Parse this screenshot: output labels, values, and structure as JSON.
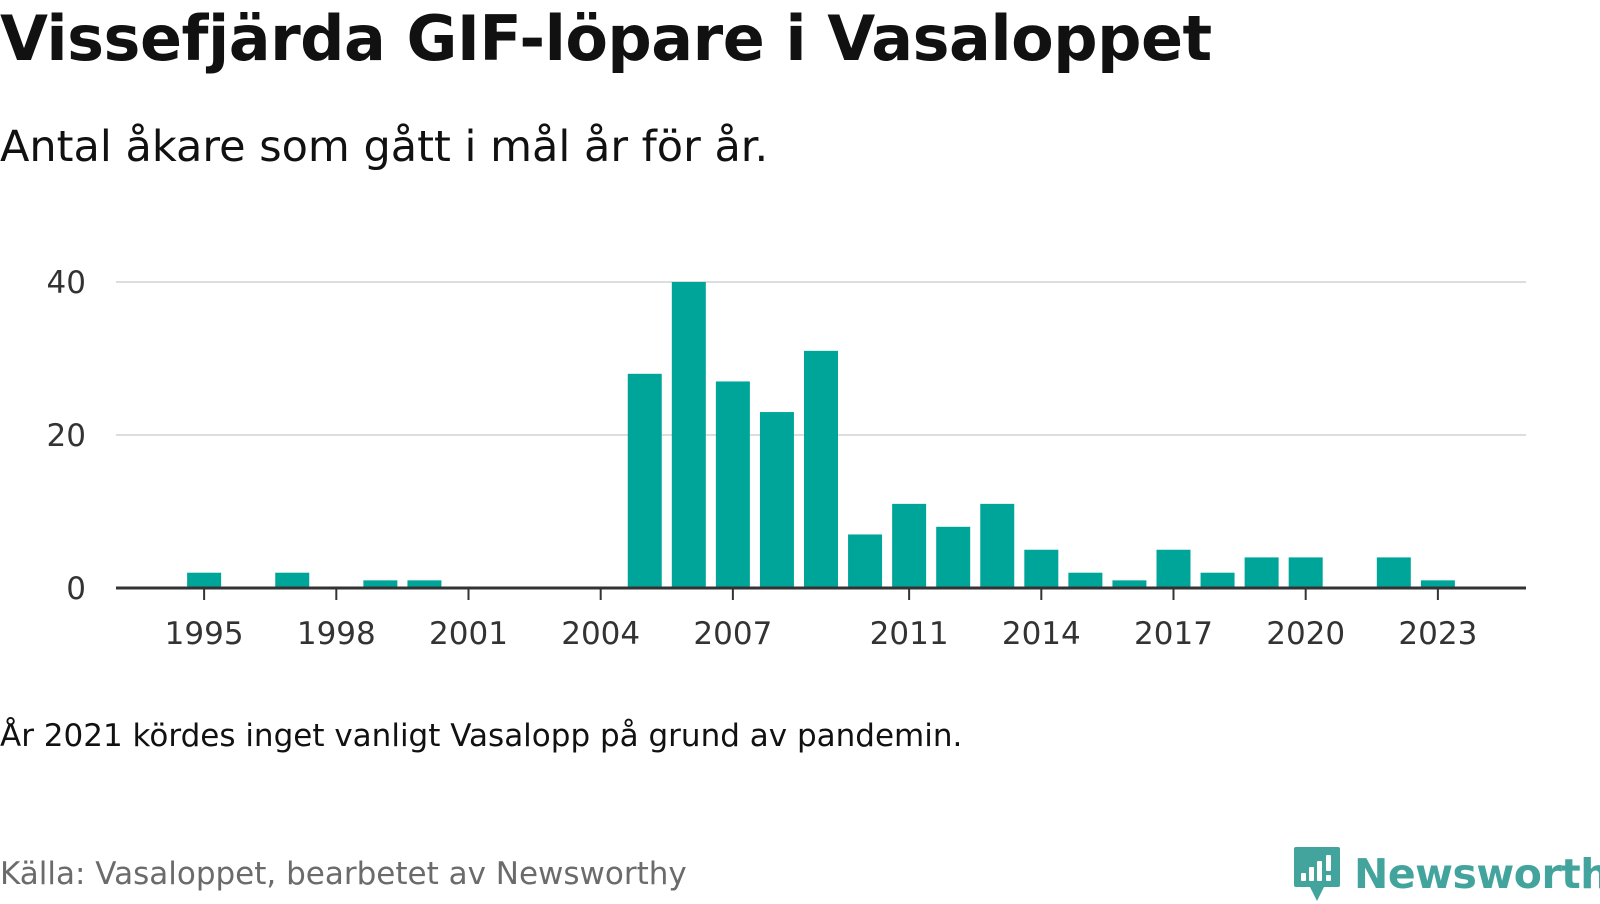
{
  "header": {
    "title": "Vissefjärda GIF-löpare i Vasaloppet",
    "subtitle": "Antal åkare som gått i mål år för år."
  },
  "footer": {
    "note": "År 2021 kördes inget vanligt Vasalopp på grund av pandemin.",
    "source": "Källa: Vasaloppet, bearbetet av Newsworthy",
    "brand": "Newsworthy"
  },
  "colors": {
    "bar": "#00a59a",
    "grid": "#dddddd",
    "axis": "#333333",
    "brand": "#43a49e"
  },
  "chart_data": {
    "type": "bar",
    "x": [
      1995,
      1997,
      1999,
      2000,
      2005,
      2006,
      2007,
      2008,
      2009,
      2010,
      2011,
      2012,
      2013,
      2014,
      2015,
      2016,
      2017,
      2018,
      2019,
      2020,
      2022,
      2023
    ],
    "values": [
      2,
      2,
      1,
      1,
      28,
      40,
      27,
      23,
      31,
      7,
      11,
      8,
      11,
      5,
      2,
      1,
      5,
      2,
      4,
      4,
      4,
      1
    ],
    "x_range": [
      1993,
      2025
    ],
    "x_ticks": [
      "1995",
      "1998",
      "2001",
      "2004",
      "2007",
      "2011",
      "2014",
      "2017",
      "2020",
      "2023"
    ],
    "y_ticks": [
      "0",
      "20",
      "40"
    ],
    "ylim": [
      0,
      40
    ],
    "grid": true,
    "legend": "none"
  }
}
